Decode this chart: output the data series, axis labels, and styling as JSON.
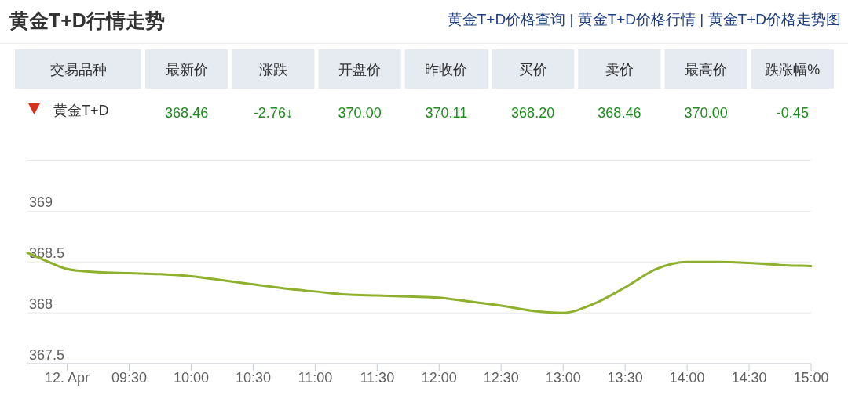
{
  "chart_data": [
    {
      "type": "other",
      "title": "黄金T+D行情走势",
      "annotations": [
        "黄金T+D价格查询 | 黄金T+D价格行情 | 黄金T+D价格走势图"
      ],
      "categories": [
        "交易品种",
        "最新价",
        "涨跌",
        "开盘价",
        "昨收价",
        "买价",
        "卖价",
        "最高价",
        "跌涨幅%"
      ],
      "values": [
        null,
        368.46,
        -2.76,
        370.0,
        370.11,
        368.2,
        368.46,
        370.0,
        -0.45
      ],
      "value_labels": [
        "黄金T+D",
        "368.46",
        "-2.76↓",
        "370.00",
        "370.11",
        "368.20",
        "368.46",
        "370.00",
        "-0.45"
      ]
    },
    {
      "type": "line",
      "color": "#8fb02c",
      "x": [
        8.68,
        8.85,
        9,
        9.25,
        9.5,
        9.75,
        10,
        10.25,
        10.5,
        10.75,
        11,
        11.25,
        11.5,
        11.75,
        12,
        12.25,
        12.5,
        12.75,
        13,
        13.25,
        13.5,
        13.75,
        14,
        14.25,
        14.5,
        14.75,
        15
      ],
      "values": [
        368.59,
        368.5,
        368.43,
        368.4,
        368.39,
        368.38,
        368.36,
        368.32,
        368.28,
        368.24,
        368.21,
        368.18,
        368.17,
        368.16,
        368.15,
        368.11,
        368.07,
        368.02,
        368.0,
        368.09,
        368.25,
        368.43,
        368.5,
        368.5,
        368.49,
        368.47,
        368.46
      ],
      "xlim": [
        8.68,
        15
      ],
      "xticks": [
        {
          "value": 9,
          "label": "12. Apr"
        },
        {
          "value": 9.5,
          "label": "09:30"
        },
        {
          "value": 10,
          "label": "10:00"
        },
        {
          "value": 10.5,
          "label": "10:30"
        },
        {
          "value": 11,
          "label": "11:00"
        },
        {
          "value": 11.5,
          "label": "11:30"
        },
        {
          "value": 12,
          "label": "12:00"
        },
        {
          "value": 12.5,
          "label": "12:30"
        },
        {
          "value": 13,
          "label": "13:00"
        },
        {
          "value": 13.5,
          "label": "13:30"
        },
        {
          "value": 14,
          "label": "14:00"
        },
        {
          "value": 14.5,
          "label": "14:30"
        },
        {
          "value": 15,
          "label": "15:00"
        }
      ],
      "ylim": [
        367.5,
        369.5
      ],
      "yticks": [
        367.5,
        368,
        368.5,
        369,
        {
          "value": 369.5,
          "label": null
        }
      ],
      "grid": "y"
    }
  ]
}
